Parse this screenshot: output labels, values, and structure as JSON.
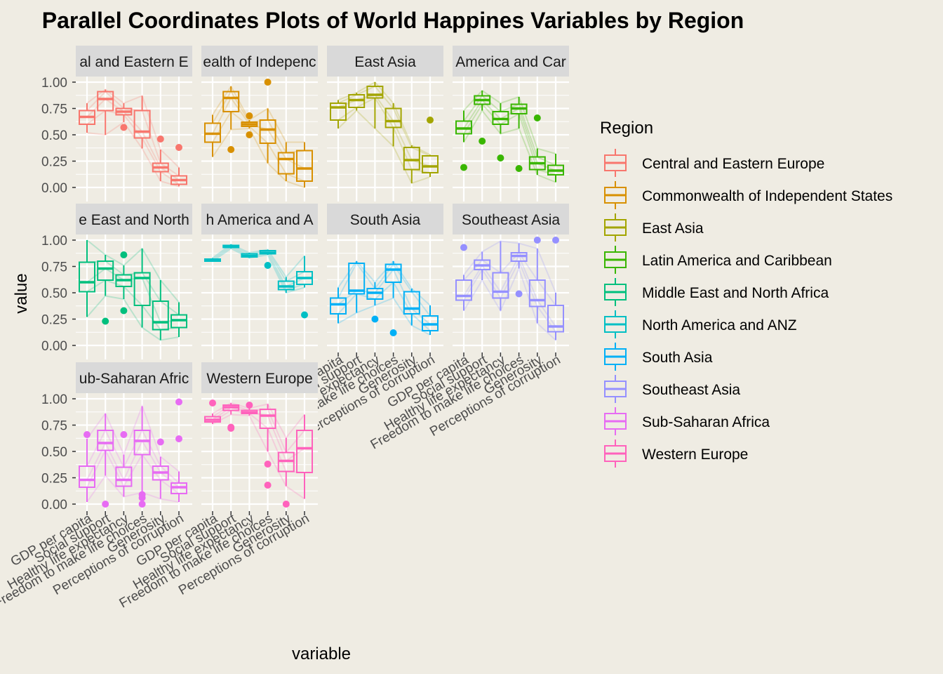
{
  "chart_data": {
    "type": "boxplot",
    "title": "Parallel Coordinates Plots of World Happines Variables by Region",
    "xlabel": "variable",
    "ylabel": "value",
    "ylim": [
      0,
      1
    ],
    "yticks": [
      "0.00",
      "0.25",
      "0.50",
      "0.75",
      "1.00"
    ],
    "grid": true,
    "legend_position": "right",
    "legend_title": "Region",
    "variables": [
      "GDP per capita",
      "Social support",
      "Healthy life expectancy",
      "Freedom to make life choices",
      "Generosity",
      "Perceptions of corruption"
    ],
    "panels": [
      {
        "region": "Central and Eastern Europe",
        "strip": "al and Eastern E",
        "color": "#F8766D",
        "boxes": [
          [
            0.52,
            0.6,
            0.67,
            0.73,
            0.8
          ],
          [
            0.5,
            0.73,
            0.84,
            0.91,
            0.93
          ],
          [
            0.62,
            0.69,
            0.72,
            0.75,
            0.8
          ],
          [
            0.37,
            0.47,
            0.53,
            0.73,
            0.87
          ],
          [
            0.06,
            0.15,
            0.19,
            0.23,
            0.36
          ],
          [
            0.01,
            0.03,
            0.07,
            0.11,
            0.19
          ]
        ],
        "outliers": [
          [],
          [],
          [
            0.57
          ],
          [],
          [
            0.46
          ],
          [
            0.38
          ]
        ]
      },
      {
        "region": "Commonwealth of Independent States",
        "strip": "ealth of Indepenc",
        "color": "#D89000",
        "boxes": [
          [
            0.29,
            0.43,
            0.51,
            0.61,
            0.69
          ],
          [
            0.55,
            0.72,
            0.85,
            0.91,
            0.96
          ],
          [
            0.56,
            0.58,
            0.6,
            0.62,
            0.64
          ],
          [
            0.23,
            0.42,
            0.55,
            0.64,
            0.75
          ],
          [
            0.06,
            0.13,
            0.27,
            0.33,
            0.43
          ],
          [
            0.0,
            0.06,
            0.18,
            0.35,
            0.43
          ]
        ],
        "outliers": [
          [],
          [
            0.36
          ],
          [
            0.5,
            0.68
          ],
          [
            1.0
          ],
          [],
          []
        ]
      },
      {
        "region": "East Asia",
        "strip": "East Asia",
        "color": "#A3A500",
        "boxes": [
          [
            0.56,
            0.64,
            0.76,
            0.8,
            0.83
          ],
          [
            0.73,
            0.76,
            0.83,
            0.88,
            0.9
          ],
          [
            0.56,
            0.85,
            0.88,
            0.96,
            1.0
          ],
          [
            0.39,
            0.57,
            0.63,
            0.75,
            0.8
          ],
          [
            0.04,
            0.17,
            0.26,
            0.38,
            0.4
          ],
          [
            0.1,
            0.14,
            0.2,
            0.3,
            0.31
          ]
        ],
        "outliers": [
          [],
          [],
          [],
          [],
          [],
          [
            0.64
          ]
        ]
      },
      {
        "region": "Latin America and Caribbean",
        "strip": "America and Car",
        "color": "#39B600",
        "boxes": [
          [
            0.43,
            0.51,
            0.56,
            0.63,
            0.73
          ],
          [
            0.73,
            0.79,
            0.83,
            0.87,
            0.92
          ],
          [
            0.51,
            0.6,
            0.65,
            0.72,
            0.8
          ],
          [
            0.56,
            0.7,
            0.75,
            0.79,
            0.86
          ],
          [
            0.12,
            0.17,
            0.23,
            0.29,
            0.37
          ],
          [
            0.05,
            0.12,
            0.16,
            0.21,
            0.32
          ]
        ],
        "outliers": [
          [
            0.19
          ],
          [
            0.44
          ],
          [
            0.28
          ],
          [
            0.18
          ],
          [
            0.66
          ],
          []
        ]
      },
      {
        "region": "Middle East and North Africa",
        "strip": "e East and North",
        "color": "#00BF7D",
        "boxes": [
          [
            0.27,
            0.51,
            0.6,
            0.79,
            1.0
          ],
          [
            0.47,
            0.62,
            0.73,
            0.8,
            0.86
          ],
          [
            0.44,
            0.56,
            0.62,
            0.67,
            0.76
          ],
          [
            0.17,
            0.38,
            0.64,
            0.69,
            0.92
          ],
          [
            0.05,
            0.15,
            0.22,
            0.42,
            0.62
          ],
          [
            0.08,
            0.17,
            0.24,
            0.29,
            0.41
          ]
        ],
        "outliers": [
          [],
          [
            0.23
          ],
          [
            0.33,
            0.86
          ],
          [],
          [],
          []
        ]
      },
      {
        "region": "North America and ANZ",
        "strip": "h America and A",
        "color": "#00BFC4",
        "boxes": [
          [
            0.8,
            0.8,
            0.81,
            0.82,
            0.83
          ],
          [
            0.92,
            0.93,
            0.94,
            0.95,
            0.96
          ],
          [
            0.83,
            0.84,
            0.85,
            0.87,
            0.88
          ],
          [
            0.86,
            0.87,
            0.88,
            0.9,
            0.91
          ],
          [
            0.5,
            0.53,
            0.56,
            0.61,
            0.65
          ],
          [
            0.55,
            0.58,
            0.64,
            0.7,
            0.85
          ]
        ],
        "outliers": [
          [],
          [],
          [],
          [
            0.76
          ],
          [],
          [
            0.29
          ]
        ]
      },
      {
        "region": "South Asia",
        "strip": "South Asia",
        "color": "#00B0F6",
        "boxes": [
          [
            0.21,
            0.3,
            0.39,
            0.45,
            0.55
          ],
          [
            0.31,
            0.49,
            0.52,
            0.78,
            0.8
          ],
          [
            0.38,
            0.44,
            0.5,
            0.54,
            0.6
          ],
          [
            0.45,
            0.6,
            0.72,
            0.77,
            0.8
          ],
          [
            0.19,
            0.3,
            0.35,
            0.51,
            0.54
          ],
          [
            0.1,
            0.14,
            0.2,
            0.28,
            0.38
          ]
        ],
        "outliers": [
          [],
          [],
          [
            0.25
          ],
          [
            0.12
          ],
          [],
          []
        ]
      },
      {
        "region": "Southeast Asia",
        "strip": "Southeast Asia",
        "color": "#9590FF",
        "boxes": [
          [
            0.33,
            0.43,
            0.47,
            0.62,
            0.67
          ],
          [
            0.62,
            0.72,
            0.76,
            0.81,
            0.89
          ],
          [
            0.33,
            0.45,
            0.51,
            0.69,
            0.99
          ],
          [
            0.73,
            0.8,
            0.85,
            0.88,
            0.97
          ],
          [
            0.21,
            0.37,
            0.43,
            0.62,
            0.92
          ],
          [
            0.05,
            0.13,
            0.18,
            0.38,
            0.5
          ]
        ],
        "outliers": [
          [
            0.93
          ],
          [],
          [],
          [
            0.49
          ],
          [
            1.0
          ],
          [
            1.0
          ]
        ]
      },
      {
        "region": "Sub-Saharan Africa",
        "strip": "ub-Saharan Afric",
        "color": "#E76BF3",
        "boxes": [
          [
            0.02,
            0.16,
            0.23,
            0.36,
            0.62
          ],
          [
            0.27,
            0.51,
            0.58,
            0.7,
            0.86
          ],
          [
            0.07,
            0.17,
            0.23,
            0.35,
            0.47
          ],
          [
            0.11,
            0.47,
            0.6,
            0.7,
            0.93
          ],
          [
            0.05,
            0.23,
            0.3,
            0.36,
            0.45
          ],
          [
            0.02,
            0.1,
            0.16,
            0.2,
            0.31
          ]
        ],
        "outliers": [
          [
            0.66
          ],
          [
            0.0
          ],
          [
            0.66
          ],
          [
            0.06,
            0.09,
            0.0
          ],
          [
            0.59
          ],
          [
            0.97,
            0.62
          ]
        ]
      },
      {
        "region": "Western Europe",
        "strip": "Western Europe",
        "color": "#FF62BC",
        "boxes": [
          [
            0.76,
            0.78,
            0.8,
            0.83,
            0.86
          ],
          [
            0.85,
            0.89,
            0.92,
            0.94,
            0.96
          ],
          [
            0.84,
            0.86,
            0.87,
            0.89,
            0.91
          ],
          [
            0.5,
            0.72,
            0.84,
            0.9,
            0.95
          ],
          [
            0.17,
            0.31,
            0.41,
            0.49,
            0.63
          ],
          [
            0.05,
            0.3,
            0.53,
            0.7,
            0.85
          ]
        ],
        "outliers": [
          [
            0.96
          ],
          [
            0.73,
            0.72
          ],
          [
            0.94
          ],
          [
            0.38,
            0.18
          ],
          [
            0.0
          ],
          []
        ]
      }
    ]
  }
}
